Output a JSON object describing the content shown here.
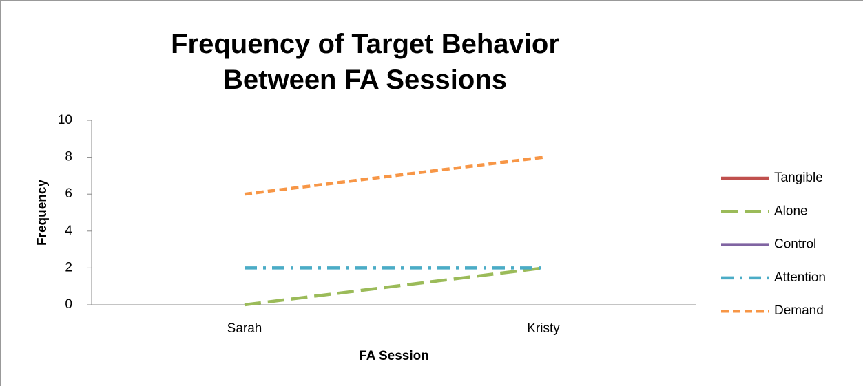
{
  "chart_data": {
    "type": "line",
    "title": "Frequency of Target Behavior Between FA Sessions",
    "x_label": "FA Session",
    "y_label": "Frequency",
    "categories": [
      "Sarah",
      "Kristy"
    ],
    "series": [
      {
        "name": "Tangible",
        "color": "#c0504d",
        "linestyle": "solid",
        "values": [
          null,
          null
        ]
      },
      {
        "name": "Alone",
        "color": "#9bbb59",
        "linestyle": "longdash",
        "values": [
          0,
          2
        ]
      },
      {
        "name": "Control",
        "color": "#8064a2",
        "linestyle": "solid",
        "values": [
          null,
          null
        ]
      },
      {
        "name": "Attention",
        "color": "#4bacc6",
        "linestyle": "dashdot",
        "values": [
          2,
          2
        ]
      },
      {
        "name": "Demand",
        "color": "#f79646",
        "linestyle": "dashed",
        "values": [
          6,
          8
        ]
      }
    ],
    "ylim": [
      0,
      10
    ],
    "yticks": [
      0,
      2,
      4,
      6,
      8,
      10
    ],
    "grid": false,
    "legend": "right"
  }
}
